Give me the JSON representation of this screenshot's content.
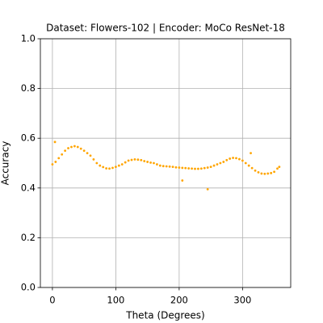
{
  "chart_data": {
    "type": "scatter",
    "title": "Dataset: Flowers-102 | Encoder: MoCo ResNet-18",
    "xlabel": "Theta (Degrees)",
    "ylabel": "Accuracy",
    "color": "#ffa500",
    "grid": true,
    "xlim": [
      -19,
      376
    ],
    "ylim": [
      0,
      1
    ],
    "xticks": [
      0,
      100,
      200,
      300
    ],
    "yticks": [
      {
        "value": 0,
        "label": "0.0"
      },
      {
        "value": 0.2,
        "label": "0.2"
      },
      {
        "value": 0.4,
        "label": "0.4"
      },
      {
        "value": 0.6,
        "label": "0.6"
      },
      {
        "value": 0.8,
        "label": "0.8"
      },
      {
        "value": 1,
        "label": "1.0"
      }
    ],
    "x": [
      0,
      5,
      10,
      15,
      20,
      25,
      30,
      35,
      40,
      45,
      50,
      55,
      60,
      65,
      70,
      75,
      80,
      85,
      90,
      95,
      100,
      105,
      110,
      115,
      120,
      125,
      130,
      135,
      140,
      145,
      150,
      155,
      160,
      165,
      170,
      175,
      180,
      185,
      190,
      195,
      200,
      205,
      210,
      215,
      220,
      225,
      230,
      235,
      240,
      245,
      250,
      255,
      260,
      265,
      270,
      275,
      280,
      285,
      290,
      295,
      300,
      305,
      310,
      315,
      320,
      325,
      330,
      335,
      340,
      345,
      350,
      355,
      358,
      4,
      313,
      205,
      245
    ],
    "values": [
      0.495,
      0.505,
      0.52,
      0.535,
      0.55,
      0.56,
      0.565,
      0.568,
      0.565,
      0.558,
      0.55,
      0.54,
      0.53,
      0.515,
      0.5,
      0.49,
      0.484,
      0.479,
      0.478,
      0.481,
      0.485,
      0.49,
      0.495,
      0.503,
      0.51,
      0.513,
      0.515,
      0.514,
      0.512,
      0.508,
      0.505,
      0.502,
      0.5,
      0.495,
      0.49,
      0.488,
      0.487,
      0.486,
      0.485,
      0.483,
      0.482,
      0.481,
      0.48,
      0.479,
      0.478,
      0.477,
      0.477,
      0.478,
      0.48,
      0.482,
      0.485,
      0.49,
      0.495,
      0.5,
      0.505,
      0.512,
      0.518,
      0.521,
      0.52,
      0.516,
      0.51,
      0.5,
      0.49,
      0.48,
      0.47,
      0.463,
      0.458,
      0.457,
      0.458,
      0.46,
      0.465,
      0.478,
      0.485,
      0.585,
      0.54,
      0.43,
      0.395
    ]
  }
}
